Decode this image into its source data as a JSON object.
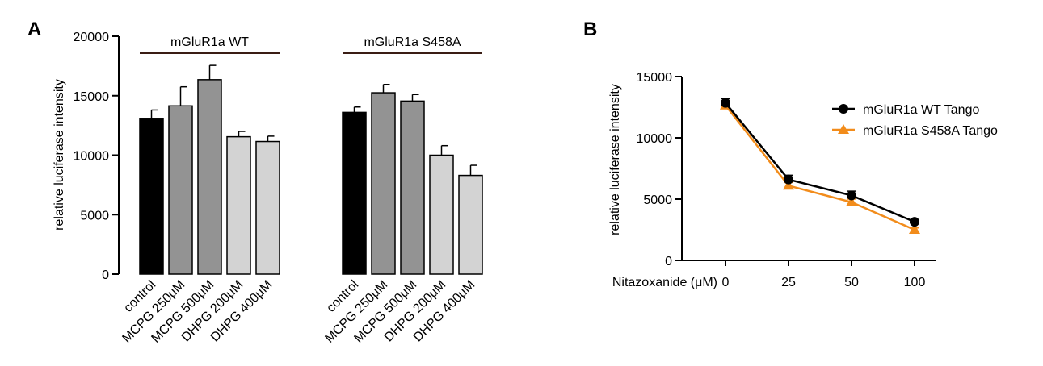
{
  "chart_data": [
    {
      "panel": "A",
      "type": "bar",
      "ylabel": "relative luciferase intensity",
      "ylim": [
        0,
        20000
      ],
      "yticks": [
        0,
        5000,
        10000,
        15000,
        20000
      ],
      "groups": [
        {
          "label": "mGluR1a WT",
          "categories": [
            "control",
            "MCPG 250μM",
            "MCPG 500μM",
            "DHPG 200μM",
            "DHPG 400μM"
          ],
          "values": [
            13100,
            14150,
            16350,
            11550,
            11150
          ],
          "errors": [
            700,
            1600,
            1200,
            450,
            450
          ],
          "colors": [
            "#000000",
            "#939393",
            "#939393",
            "#d3d3d3",
            "#d3d3d3"
          ]
        },
        {
          "label": "mGluR1a S458A",
          "categories": [
            "control",
            "MCPG 250μM",
            "MCPG 500μM",
            "DHPG 200μM",
            "DHPG 400μM"
          ],
          "values": [
            13600,
            15250,
            14550,
            10000,
            8300
          ],
          "errors": [
            450,
            700,
            550,
            800,
            850
          ],
          "colors": [
            "#000000",
            "#939393",
            "#939393",
            "#d3d3d3",
            "#d3d3d3"
          ]
        }
      ]
    },
    {
      "panel": "B",
      "type": "line",
      "xlabel": "Nitazoxanide (μM)",
      "ylabel": "relative luciferase intensity",
      "ylim": [
        0,
        15000
      ],
      "yticks": [
        0,
        5000,
        10000,
        15000
      ],
      "x": [
        0,
        25,
        50,
        100
      ],
      "xtick_labels": [
        "0",
        "25",
        "50",
        "100"
      ],
      "legend": "top-right",
      "series": [
        {
          "name": "mGluR1a WT Tango",
          "values": [
            12850,
            6600,
            5300,
            3150
          ],
          "errors": [
            350,
            350,
            350,
            150
          ],
          "color": "#000000",
          "marker": "circle"
        },
        {
          "name": "mGluR1a S458A Tango",
          "values": [
            12650,
            6100,
            4750,
            2500
          ],
          "errors": [
            200,
            250,
            250,
            150
          ],
          "color": "#f28c1b",
          "marker": "triangle"
        }
      ]
    }
  ]
}
